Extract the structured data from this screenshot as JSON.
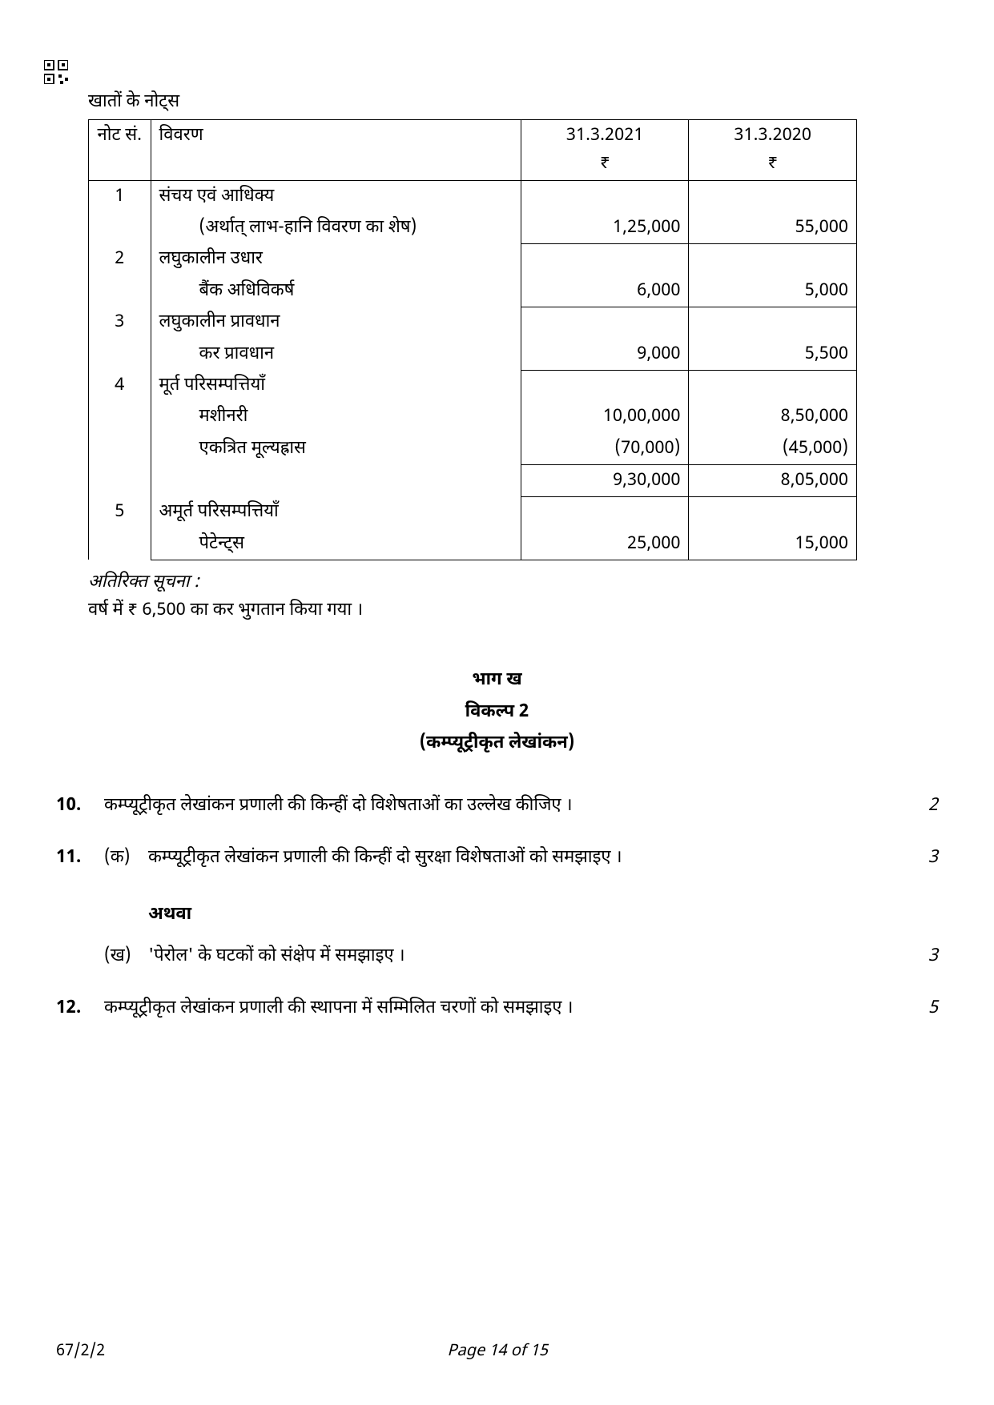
{
  "caption": "खातों के नोट्स",
  "columns": {
    "note_no": "नोट सं.",
    "desc": "विवरण",
    "col_2021": "31.3.2021",
    "col_2020": "31.3.2020",
    "currency": "₹"
  },
  "rows": [
    {
      "no": "1",
      "lines": [
        {
          "desc": "संचय एवं आधिक्य",
          "a2021": "",
          "a2020": ""
        },
        {
          "desc_indent": "(अर्थात् लाभ-हानि विवरण का शेष)",
          "a2021": "1,25,000",
          "a2020": "55,000",
          "rule": true
        }
      ]
    },
    {
      "no": "2",
      "lines": [
        {
          "desc": "लघुकालीन उधार",
          "a2021": "",
          "a2020": ""
        },
        {
          "desc_indent": "बैंक अधिविकर्ष",
          "a2021": "6,000",
          "a2020": "5,000",
          "rule": true
        }
      ]
    },
    {
      "no": "3",
      "lines": [
        {
          "desc": "लघुकालीन प्रावधान",
          "a2021": "",
          "a2020": ""
        },
        {
          "desc_indent": "कर प्रावधान",
          "a2021": "9,000",
          "a2020": "5,500",
          "rule": true
        }
      ]
    },
    {
      "no": "4",
      "lines": [
        {
          "desc": "मूर्त परिसम्पत्तियाँ",
          "a2021": "",
          "a2020": ""
        },
        {
          "desc_indent": "मशीनरी",
          "a2021": "10,00,000",
          "a2020": "8,50,000"
        },
        {
          "desc_indent": "एकत्रित मूल्यह्रास",
          "a2021": "(70,000)",
          "a2020": "(45,000)",
          "rule": true
        },
        {
          "desc": "",
          "a2021": "9,30,000",
          "a2020": "8,05,000",
          "rule": true
        }
      ]
    },
    {
      "no": "5",
      "lines": [
        {
          "desc": "अमूर्त परिसम्पत्तियाँ",
          "a2021": "",
          "a2020": ""
        },
        {
          "desc_indent": "पेटेन्ट्स",
          "a2021": "25,000",
          "a2020": "15,000"
        }
      ]
    }
  ],
  "additional": {
    "label": "अतिरिक्त सूचना :",
    "text": "वर्ष में ₹ 6,500 का कर भुगतान किया गया ।"
  },
  "section": {
    "part": "भाग ख",
    "option": "विकल्प 2",
    "title": "(कम्प्यूट्रीकृत लेखांकन)"
  },
  "questions": [
    {
      "no": "10.",
      "text": "कम्प्यूट्रीकृत लेखांकन प्रणाली की किन्हीं दो विशेषताओं का उल्लेख कीजिए ।",
      "marks": "2"
    },
    {
      "no": "11.",
      "parts": [
        {
          "sub": "(क)",
          "text": "कम्प्यूट्रीकृत लेखांकन प्रणाली की किन्हीं दो सुरक्षा विशेषताओं को समझाइए ।",
          "marks": "3"
        },
        {
          "or": "अथवा"
        },
        {
          "sub": "(ख)",
          "text": "'पेरोल' के घटकों को संक्षेप में समझाइए ।",
          "marks": "3"
        }
      ]
    },
    {
      "no": "12.",
      "text": "कम्प्यूट्रीकृत लेखांकन प्रणाली की स्थापना में सम्मिलित चरणों को समझाइए ।",
      "marks": "5"
    }
  ],
  "footer": {
    "code": "67/2/2",
    "page": "Page 14 of 15"
  }
}
